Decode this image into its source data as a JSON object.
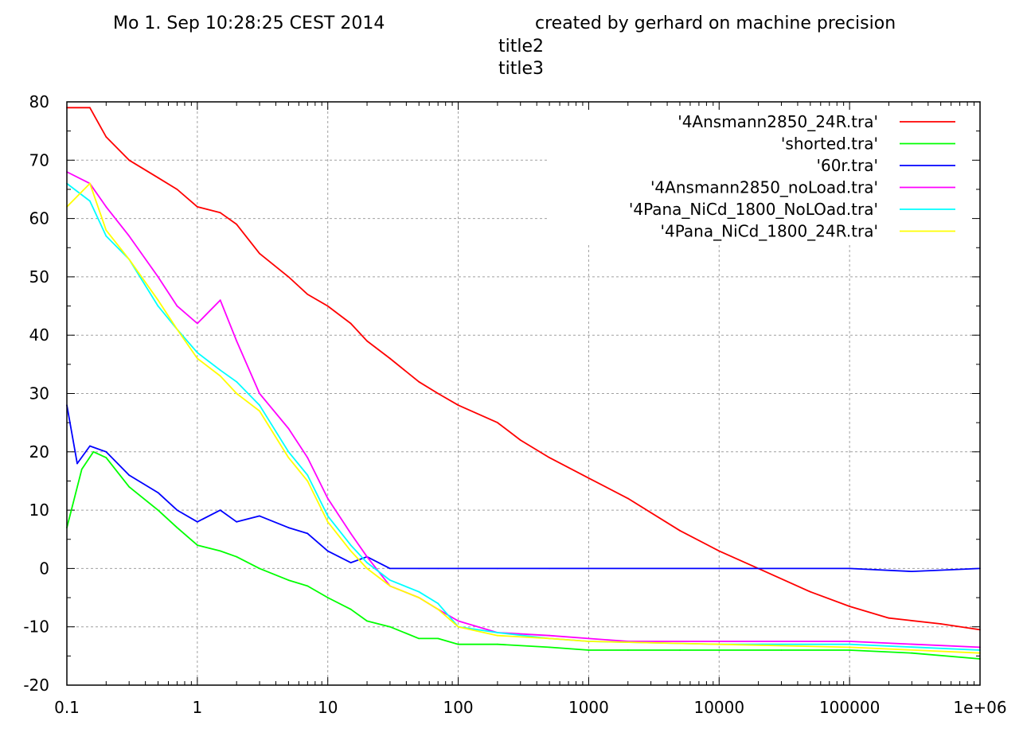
{
  "header": {
    "left": "Mo 1. Sep 10:28:25 CEST 2014",
    "right": "created by gerhard on machine precision",
    "title2": "title2",
    "title3": "title3"
  },
  "chart_data": {
    "type": "line",
    "x_scale": "log",
    "xlim": [
      0.1,
      1000000
    ],
    "ylim": [
      -20,
      80
    ],
    "grid": true,
    "legend_position": "top-right",
    "x_ticks": [
      "0.1",
      "1",
      "10",
      "100",
      "1000",
      "10000",
      "100000",
      "1e+06"
    ],
    "y_ticks": [
      "80",
      "70",
      "60",
      "50",
      "40",
      "30",
      "20",
      "10",
      "0",
      "-10",
      "-20"
    ],
    "series": [
      {
        "name": "'4Ansmann2850_24R.tra'",
        "color": "#ff0000",
        "x": [
          0.1,
          0.15,
          0.2,
          0.3,
          0.5,
          0.7,
          1,
          1.5,
          2,
          3,
          5,
          7,
          10,
          15,
          20,
          30,
          50,
          70,
          100,
          200,
          300,
          500,
          1000,
          2000,
          5000,
          10000,
          20000,
          50000,
          100000,
          200000,
          500000,
          1000000
        ],
        "y": [
          79,
          79,
          74,
          70,
          67,
          65,
          62,
          61,
          59,
          54,
          50,
          47,
          45,
          42,
          39,
          36,
          32,
          30,
          28,
          25,
          22,
          19,
          15.5,
          12,
          6.5,
          3,
          0,
          -4,
          -6.5,
          -8.5,
          -9.5,
          -10.5
        ]
      },
      {
        "name": "'shorted.tra'",
        "color": "#00ff00",
        "x": [
          0.1,
          0.13,
          0.16,
          0.2,
          0.3,
          0.5,
          0.7,
          1,
          1.5,
          2,
          3,
          5,
          7,
          10,
          15,
          20,
          30,
          50,
          70,
          100,
          200,
          500,
          1000,
          2000,
          5000,
          10000,
          30000,
          100000,
          300000,
          1000000
        ],
        "y": [
          7,
          17,
          20,
          19,
          14,
          10,
          7,
          4,
          3,
          2,
          0,
          -2,
          -3,
          -5,
          -7,
          -9,
          -10,
          -12,
          -12,
          -13,
          -13,
          -13.5,
          -14,
          -14,
          -14,
          -14,
          -14,
          -14,
          -14.5,
          -15.5
        ]
      },
      {
        "name": "'60r.tra'",
        "color": "#0000ff",
        "x": [
          0.1,
          0.12,
          0.15,
          0.2,
          0.3,
          0.5,
          0.7,
          1,
          1.5,
          2,
          3,
          5,
          7,
          10,
          15,
          20,
          30,
          50,
          70,
          100,
          200,
          500,
          1000,
          10000,
          100000,
          300000,
          1000000
        ],
        "y": [
          28,
          18,
          21,
          20,
          16,
          13,
          10,
          8,
          10,
          8,
          9,
          7,
          6,
          3,
          1,
          2,
          0,
          0,
          0,
          0,
          0,
          0,
          0,
          0,
          0,
          -0.5,
          0
        ]
      },
      {
        "name": "'4Ansmann2850_noLoad.tra'",
        "color": "#ff00ff",
        "x": [
          0.1,
          0.15,
          0.2,
          0.3,
          0.5,
          0.7,
          1,
          1.5,
          2,
          3,
          5,
          7,
          10,
          15,
          20,
          30,
          50,
          70,
          100,
          200,
          500,
          1000,
          2000,
          10000,
          100000,
          1000000
        ],
        "y": [
          68,
          66,
          62,
          57,
          50,
          45,
          42,
          46,
          39,
          30,
          24,
          19,
          12,
          6,
          2,
          -3,
          -5,
          -7,
          -9,
          -11,
          -11.5,
          -12,
          -12.5,
          -12.5,
          -12.5,
          -13.5
        ]
      },
      {
        "name": "'4Pana_NiCd_1800_NoLOad.tra'",
        "color": "#00ffff",
        "x": [
          0.1,
          0.15,
          0.2,
          0.3,
          0.5,
          0.7,
          1,
          1.5,
          2,
          3,
          5,
          7,
          10,
          15,
          20,
          30,
          50,
          70,
          100,
          200,
          500,
          1000,
          10000,
          100000,
          1000000
        ],
        "y": [
          66,
          63,
          57,
          53,
          45,
          41,
          37,
          34,
          32,
          28,
          20,
          16,
          9,
          4,
          1,
          -2,
          -4,
          -6,
          -10,
          -11,
          -12,
          -12.5,
          -13,
          -13,
          -14
        ]
      },
      {
        "name": "'4Pana_NiCd_1800_24R.tra'",
        "color": "#ffff00",
        "x": [
          0.1,
          0.15,
          0.2,
          0.3,
          0.5,
          0.7,
          1,
          1.5,
          2,
          3,
          5,
          7,
          10,
          15,
          20,
          30,
          50,
          70,
          100,
          200,
          500,
          1000,
          10000,
          100000,
          1000000
        ],
        "y": [
          62,
          66,
          58,
          53,
          46,
          41,
          36,
          33,
          30,
          27,
          19,
          15,
          8,
          3,
          0,
          -3,
          -5,
          -7,
          -10,
          -11.5,
          -12,
          -12.5,
          -13,
          -13.5,
          -14.5
        ]
      }
    ]
  }
}
